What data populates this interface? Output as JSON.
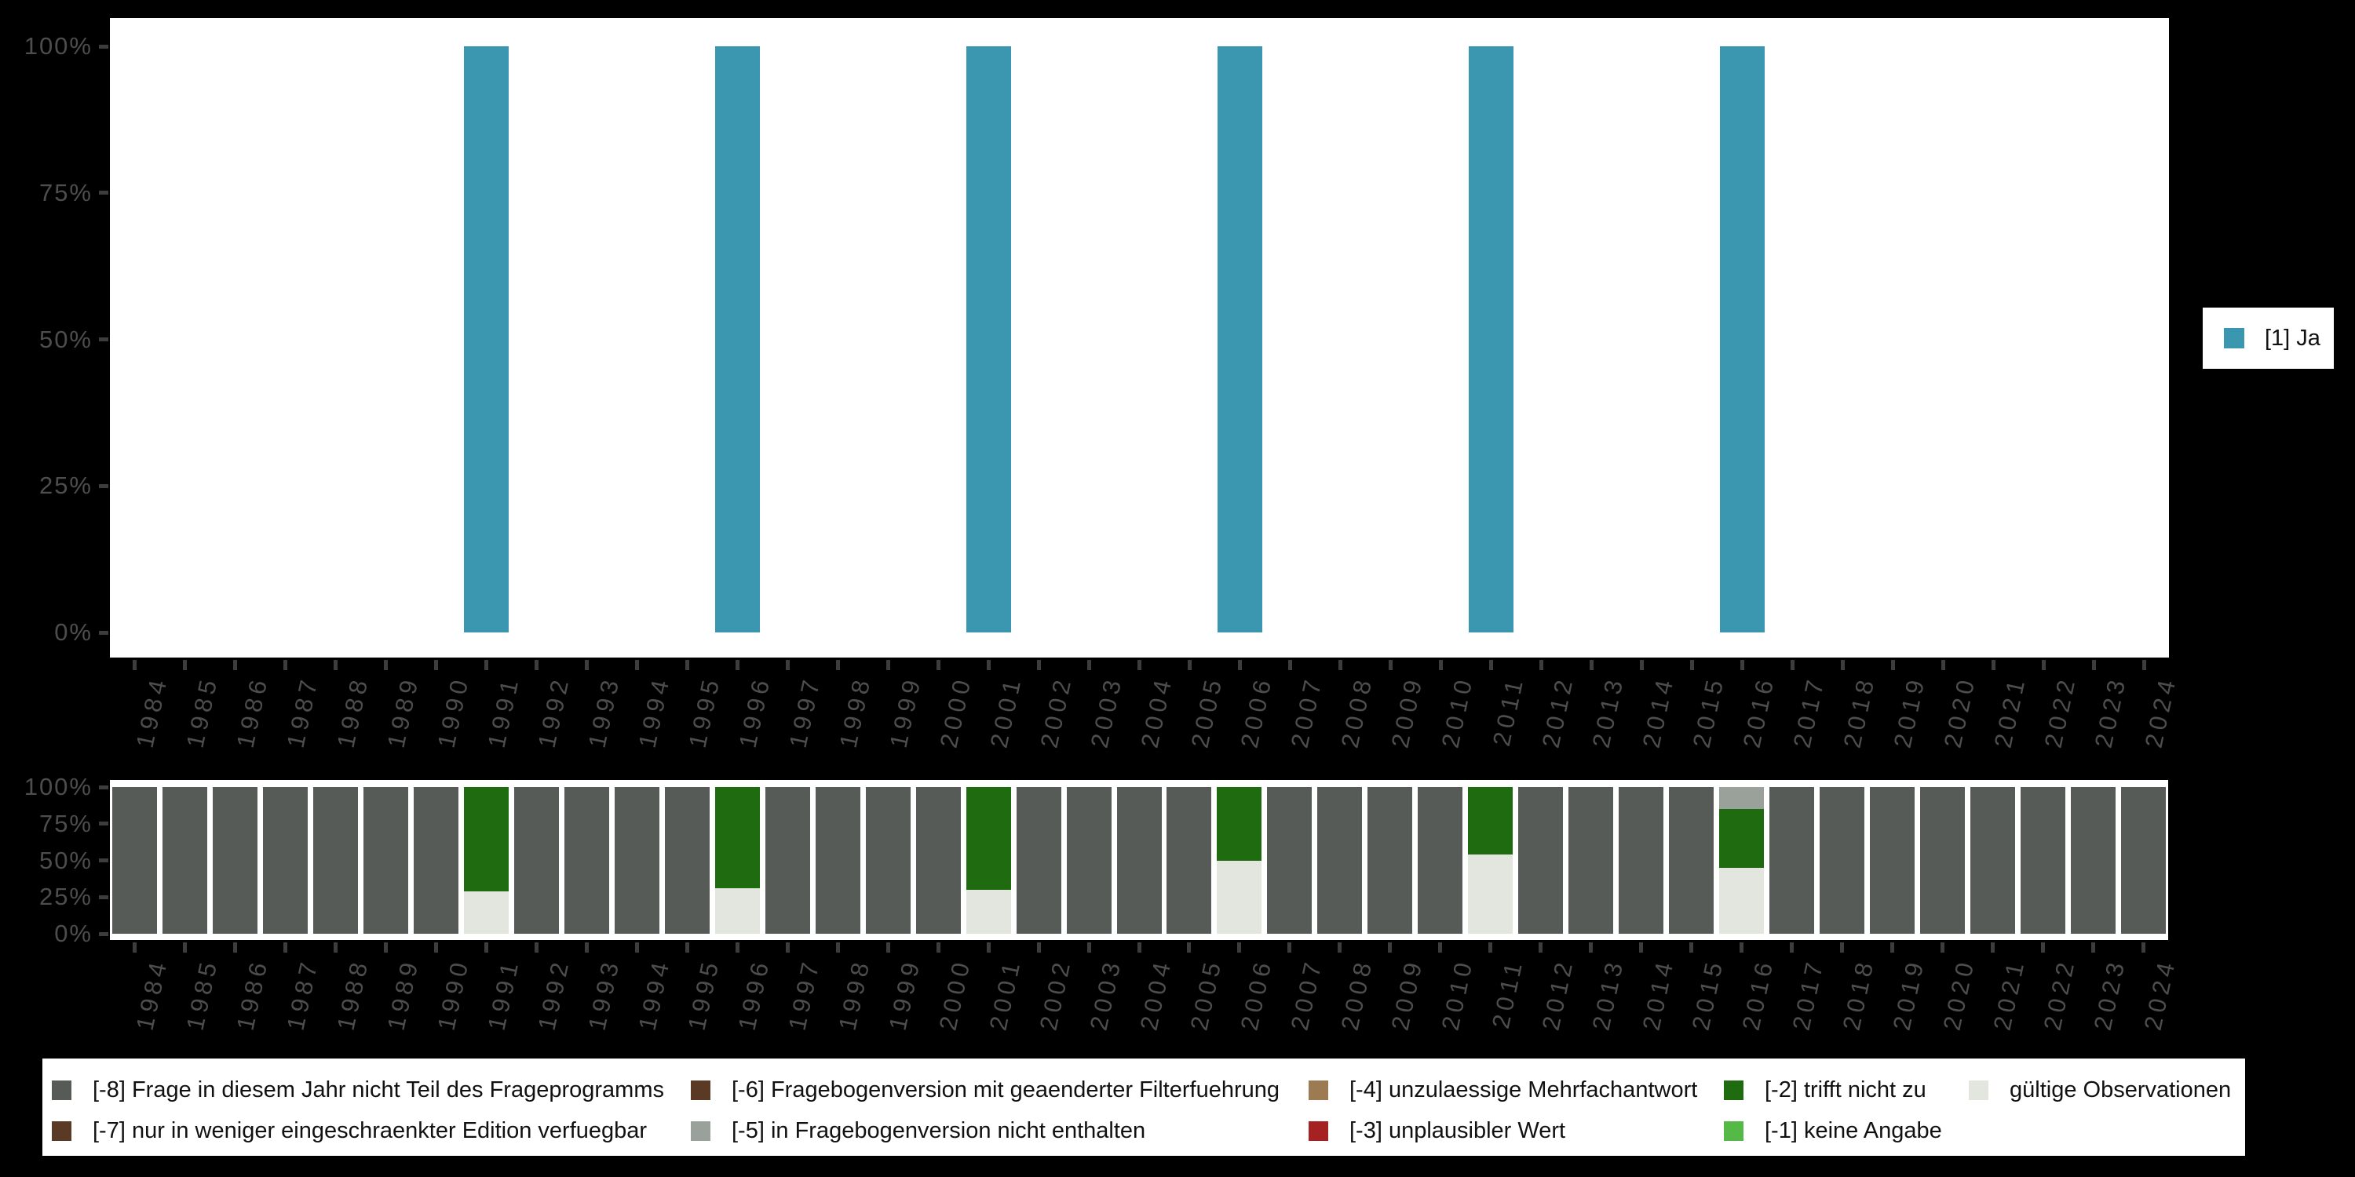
{
  "colors": {
    "background": "#000000",
    "plot_background": "#ffffff",
    "axis_text": "#4d4d4d",
    "tick_mark": "#3d3d3d",
    "legend_text": "#111111",
    "ja": "#3B97B0",
    "valid": "#E2E6DF",
    "code_m1": "#55B947",
    "code_m2": "#1F6C10",
    "code_m3": "#A62121",
    "code_m4": "#9C7B52",
    "code_m5": "#9AA09A",
    "code_m6": "#5A3A24",
    "code_m7": "#5A3A24",
    "code_m8": "#565B57"
  },
  "top_chart_legend": {
    "label": "[1] Ja",
    "color": "#3B97B0"
  },
  "bottom_legend": {
    "columns": [
      [
        {
          "key": "m8",
          "label": "[-8] Frage in diesem Jahr nicht Teil des Frageprogramms",
          "color": "#565B57"
        },
        {
          "key": "m7",
          "label": "[-7] nur in weniger eingeschraenkter Edition verfuegbar",
          "color": "#5A3A24"
        }
      ],
      [
        {
          "key": "m6",
          "label": "[-6] Fragebogenversion mit geaenderter Filterfuehrung",
          "color": "#5A3A24"
        },
        {
          "key": "m5",
          "label": "[-5] in Fragebogenversion nicht enthalten",
          "color": "#9AA09A"
        }
      ],
      [
        {
          "key": "m4",
          "label": "[-4] unzulaessige Mehrfachantwort",
          "color": "#9C7B52"
        },
        {
          "key": "m3",
          "label": "[-3] unplausibler Wert",
          "color": "#A62121"
        }
      ],
      [
        {
          "key": "m2",
          "label": "[-2] trifft nicht zu",
          "color": "#1F6C10"
        },
        {
          "key": "m1",
          "label": "[-1] keine Angabe",
          "color": "#55B947"
        }
      ],
      [
        {
          "key": "valid",
          "label": "gültige Observationen",
          "color": "#E2E6DF"
        }
      ]
    ]
  },
  "chart_data": [
    {
      "type": "bar",
      "title": "",
      "categories": [
        "1984",
        "1985",
        "1986",
        "1987",
        "1988",
        "1989",
        "1990",
        "1991",
        "1992",
        "1993",
        "1994",
        "1995",
        "1996",
        "1997",
        "1998",
        "1999",
        "2000",
        "2001",
        "2002",
        "2003",
        "2004",
        "2005",
        "2006",
        "2007",
        "2008",
        "2009",
        "2010",
        "2011",
        "2012",
        "2013",
        "2014",
        "2015",
        "2016",
        "2017",
        "2018",
        "2019",
        "2020",
        "2021",
        "2022",
        "2023",
        "2024"
      ],
      "yticks": [
        "0%",
        "25%",
        "50%",
        "75%",
        "100%"
      ],
      "ylim": [
        0,
        100
      ],
      "grid": false,
      "legend_position": "right",
      "series": [
        {
          "key": "ja",
          "name": "[1] Ja",
          "color": "#3B97B0",
          "values": [
            0,
            0,
            0,
            0,
            0,
            0,
            0,
            100,
            0,
            0,
            0,
            0,
            100,
            0,
            0,
            0,
            0,
            100,
            0,
            0,
            0,
            0,
            100,
            0,
            0,
            0,
            0,
            100,
            0,
            0,
            0,
            0,
            100,
            0,
            0,
            0,
            0,
            0,
            0,
            0,
            0
          ]
        }
      ]
    },
    {
      "type": "stacked-bar-100",
      "title": "",
      "categories": [
        "1984",
        "1985",
        "1986",
        "1987",
        "1988",
        "1989",
        "1990",
        "1991",
        "1992",
        "1993",
        "1994",
        "1995",
        "1996",
        "1997",
        "1998",
        "1999",
        "2000",
        "2001",
        "2002",
        "2003",
        "2004",
        "2005",
        "2006",
        "2007",
        "2008",
        "2009",
        "2010",
        "2011",
        "2012",
        "2013",
        "2014",
        "2015",
        "2016",
        "2017",
        "2018",
        "2019",
        "2020",
        "2021",
        "2022",
        "2023",
        "2024"
      ],
      "yticks": [
        "0%",
        "25%",
        "50%",
        "75%",
        "100%"
      ],
      "ylim": [
        0,
        100
      ],
      "grid": false,
      "legend_position": "bottom",
      "series": [
        {
          "key": "valid",
          "name": "gültige Observationen",
          "color": "#E2E6DF",
          "values": [
            0,
            0,
            0,
            0,
            0,
            0,
            0,
            29,
            0,
            0,
            0,
            0,
            31,
            0,
            0,
            0,
            0,
            30,
            0,
            0,
            0,
            0,
            50,
            0,
            0,
            0,
            0,
            54,
            0,
            0,
            0,
            0,
            45,
            0,
            0,
            0,
            0,
            0,
            0,
            0,
            0
          ]
        },
        {
          "key": "m2",
          "name": "[-2] trifft nicht zu",
          "color": "#1F6C10",
          "values": [
            0,
            0,
            0,
            0,
            0,
            0,
            0,
            71,
            0,
            0,
            0,
            0,
            69,
            0,
            0,
            0,
            0,
            70,
            0,
            0,
            0,
            0,
            50,
            0,
            0,
            0,
            0,
            46,
            0,
            0,
            0,
            0,
            40,
            0,
            0,
            0,
            0,
            0,
            0,
            0,
            0
          ]
        },
        {
          "key": "m5",
          "name": "[-5] in Fragebogenversion nicht enthalten",
          "color": "#9AA09A",
          "values": [
            0,
            0,
            0,
            0,
            0,
            0,
            0,
            0,
            0,
            0,
            0,
            0,
            0,
            0,
            0,
            0,
            0,
            0,
            0,
            0,
            0,
            0,
            0,
            0,
            0,
            0,
            0,
            0,
            0,
            0,
            0,
            0,
            15,
            0,
            0,
            0,
            0,
            0,
            0,
            0,
            0
          ]
        },
        {
          "key": "m8",
          "name": "[-8] Frage in diesem Jahr nicht Teil des Frageprogramms",
          "color": "#565B57",
          "values": [
            100,
            100,
            100,
            100,
            100,
            100,
            100,
            0,
            100,
            100,
            100,
            100,
            0,
            100,
            100,
            100,
            100,
            0,
            100,
            100,
            100,
            100,
            0,
            100,
            100,
            100,
            100,
            0,
            100,
            100,
            100,
            100,
            0,
            100,
            100,
            100,
            100,
            100,
            100,
            100,
            100
          ]
        }
      ]
    }
  ]
}
